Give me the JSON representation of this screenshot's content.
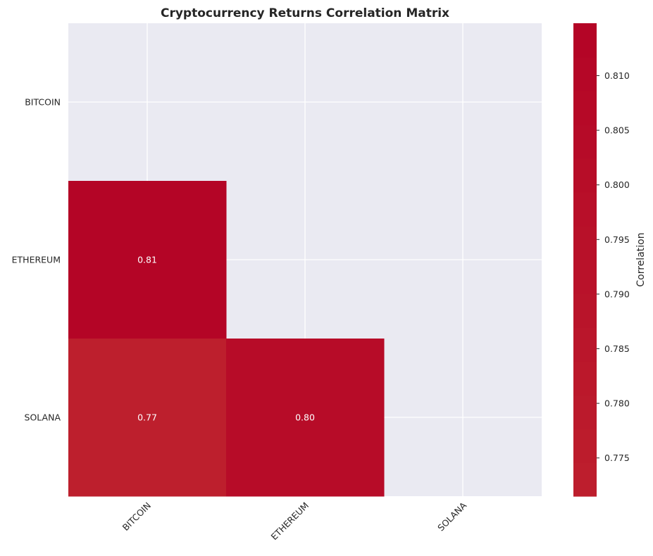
{
  "chart_data": {
    "type": "heatmap",
    "title": "Cryptocurrency Returns Correlation Matrix",
    "rows": [
      "BITCOIN",
      "ETHEREUM",
      "SOLANA"
    ],
    "columns": [
      "BITCOIN",
      "ETHEREUM",
      "SOLANA"
    ],
    "mask": "upper-triangle-including-diagonal",
    "cells": [
      {
        "row": "ETHEREUM",
        "col": "BITCOIN",
        "value": 0.8125,
        "label": "0.81"
      },
      {
        "row": "SOLANA",
        "col": "BITCOIN",
        "value": 0.7715,
        "label": "0.77"
      },
      {
        "row": "SOLANA",
        "col": "ETHEREUM",
        "value": 0.8015,
        "label": "0.80"
      }
    ],
    "colorbar": {
      "label": "Correlation",
      "range": [
        0.7715,
        0.8148
      ],
      "ticks": [
        0.775,
        0.78,
        0.785,
        0.79,
        0.795,
        0.8,
        0.805,
        0.81
      ],
      "tick_labels": [
        "0.775",
        "0.780",
        "0.785",
        "0.790",
        "0.795",
        "0.800",
        "0.805",
        "0.810"
      ],
      "color_low": "#bd1f2d",
      "color_high": "#b40426"
    },
    "grid": true,
    "background_color": "#eaeaf2",
    "grid_color": "#ffffff"
  }
}
